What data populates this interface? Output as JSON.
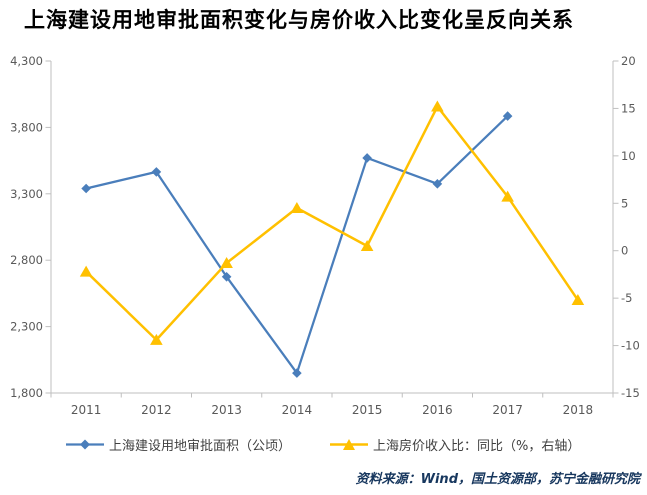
{
  "title": "上海建设用地审批面积变化与房价收入比变化呈反向关系",
  "source_note": "资料来源：Wind，国土资源部，苏宁金融研究院",
  "colors": {
    "series_blue": "#4A7EBB",
    "series_yellow": "#FFC000",
    "axis_line": "#BFBFBF",
    "tick_text": "#595959",
    "legend_text": "#404040",
    "title_text": "#000000",
    "source_text": "#17375E"
  },
  "legend": {
    "items": [
      {
        "label": "上海建设用地审批面积（公顷）",
        "marker": "diamond-marker-icon"
      },
      {
        "label": "上海房价收入比：同比（%，右轴）",
        "marker": "triangle-marker-icon"
      }
    ]
  },
  "chart_data": {
    "type": "line",
    "title": "上海建设用地审批面积变化与房价收入比变化呈反向关系",
    "categories": [
      "2011",
      "2012",
      "2013",
      "2014",
      "2015",
      "2016",
      "2017",
      "2018"
    ],
    "series": [
      {
        "name": "上海建设用地审批面积（公顷）",
        "axis": "left",
        "marker": "diamond",
        "color": "#4A7EBB",
        "values": [
          3340,
          3465,
          2675,
          1950,
          3570,
          3375,
          3885,
          null
        ]
      },
      {
        "name": "上海房价收入比：同比（%，右轴）",
        "axis": "right",
        "marker": "triangle",
        "color": "#FFC000",
        "values": [
          -2.2,
          -9.4,
          -1.3,
          4.5,
          0.5,
          15.2,
          5.7,
          -5.2
        ]
      }
    ],
    "left_axis": {
      "min": 1800,
      "max": 4300,
      "tick_step": 500,
      "tick_labels": [
        "4,300",
        "3,800",
        "3,300",
        "2,800",
        "2,300",
        "1,800"
      ]
    },
    "right_axis": {
      "min": -15,
      "max": 20,
      "tick_step": 5,
      "tick_labels": [
        "20",
        "15",
        "10",
        "5",
        "0",
        "-5",
        "-10",
        "-15"
      ]
    },
    "grid": false,
    "legend_position": "bottom"
  }
}
